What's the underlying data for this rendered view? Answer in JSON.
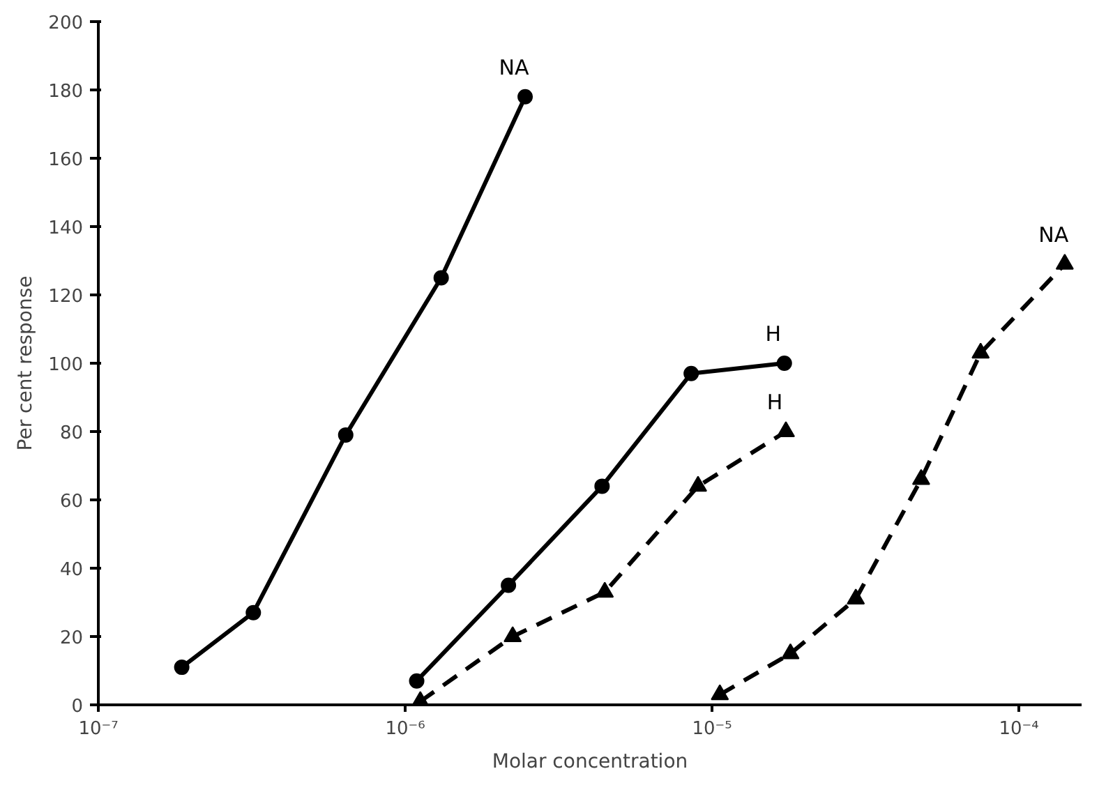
{
  "chart_data": {
    "type": "line",
    "xlabel": "Molar concentration",
    "ylabel": "Per cent response",
    "log": "x",
    "xlim": [
      1e-07,
      0.00016
    ],
    "ylim": [
      0,
      200
    ],
    "xticks": [
      {
        "value": 1e-07,
        "label": "10⁻⁷"
      },
      {
        "value": 1e-06,
        "label": "10⁻⁶"
      },
      {
        "value": 1e-05,
        "label": "10⁻⁵"
      },
      {
        "value": 0.0001,
        "label": "10⁻⁴"
      }
    ],
    "yticks": [
      0,
      20,
      40,
      60,
      80,
      100,
      120,
      140,
      160,
      180,
      200
    ],
    "grid": false,
    "series": [
      {
        "name": "NA",
        "color": "#000000",
        "marker": "circle",
        "line_style": "solid",
        "x": [
          1.87e-07,
          3.2e-07,
          6.4e-07,
          1.31e-06,
          2.46e-06
        ],
        "values": [
          11,
          27,
          79,
          125,
          178
        ]
      },
      {
        "name": "H",
        "color": "#000000",
        "marker": "circle",
        "line_style": "solid",
        "x": [
          1.09e-06,
          2.17e-06,
          4.38e-06,
          8.55e-06,
          1.72e-05
        ],
        "values": [
          7,
          35,
          64,
          97,
          100
        ]
      },
      {
        "name": "H",
        "color": "#000000",
        "marker": "triangle",
        "line_style": "dashed",
        "x": [
          1.12e-06,
          2.24e-06,
          4.47e-06,
          9e-06,
          1.74e-05
        ],
        "values": [
          1,
          20,
          33,
          64,
          80
        ]
      },
      {
        "name": "NA",
        "color": "#000000",
        "marker": "triangle",
        "line_style": "dashed",
        "x": [
          1.06e-05,
          1.8e-05,
          2.94e-05,
          4.8e-05,
          7.5e-05,
          0.000141
        ],
        "values": [
          3,
          15,
          31,
          66,
          103,
          129
        ]
      }
    ]
  }
}
